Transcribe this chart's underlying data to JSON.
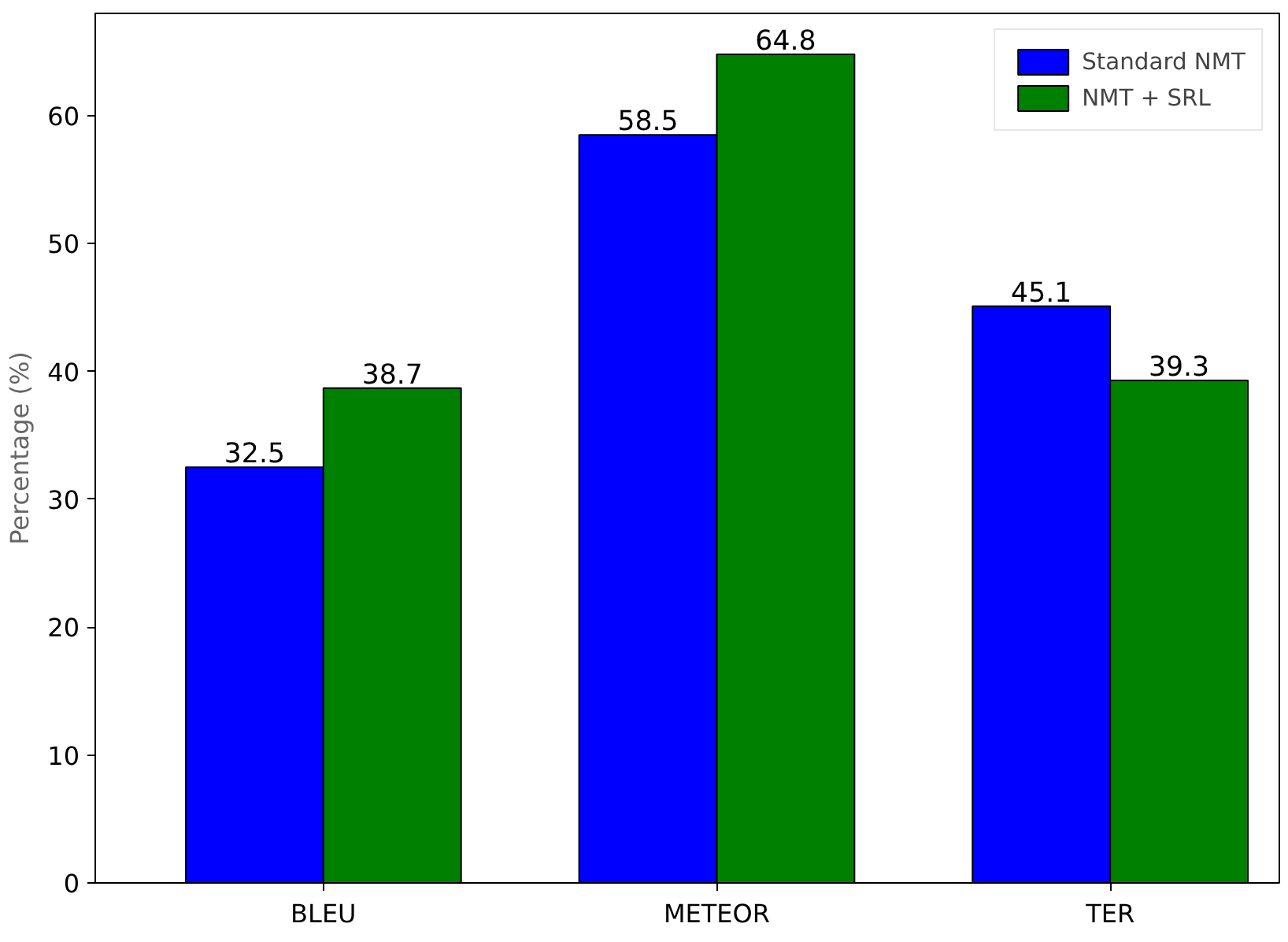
{
  "chart_data": {
    "type": "bar",
    "ylabel": "Percentage (%)",
    "categories": [
      "BLEU",
      "METEOR",
      "TER"
    ],
    "series": [
      {
        "name": "Standard NMT",
        "color": "#0000ff",
        "values": [
          32.5,
          58.5,
          45.1
        ]
      },
      {
        "name": "NMT + SRL",
        "color": "#008000",
        "values": [
          38.7,
          64.8,
          39.3
        ]
      }
    ],
    "ylim": [
      0,
      68
    ],
    "yticks": [
      0,
      10,
      20,
      30,
      40,
      50,
      60
    ],
    "grid": false,
    "legend": "top right",
    "data_labels": true
  }
}
